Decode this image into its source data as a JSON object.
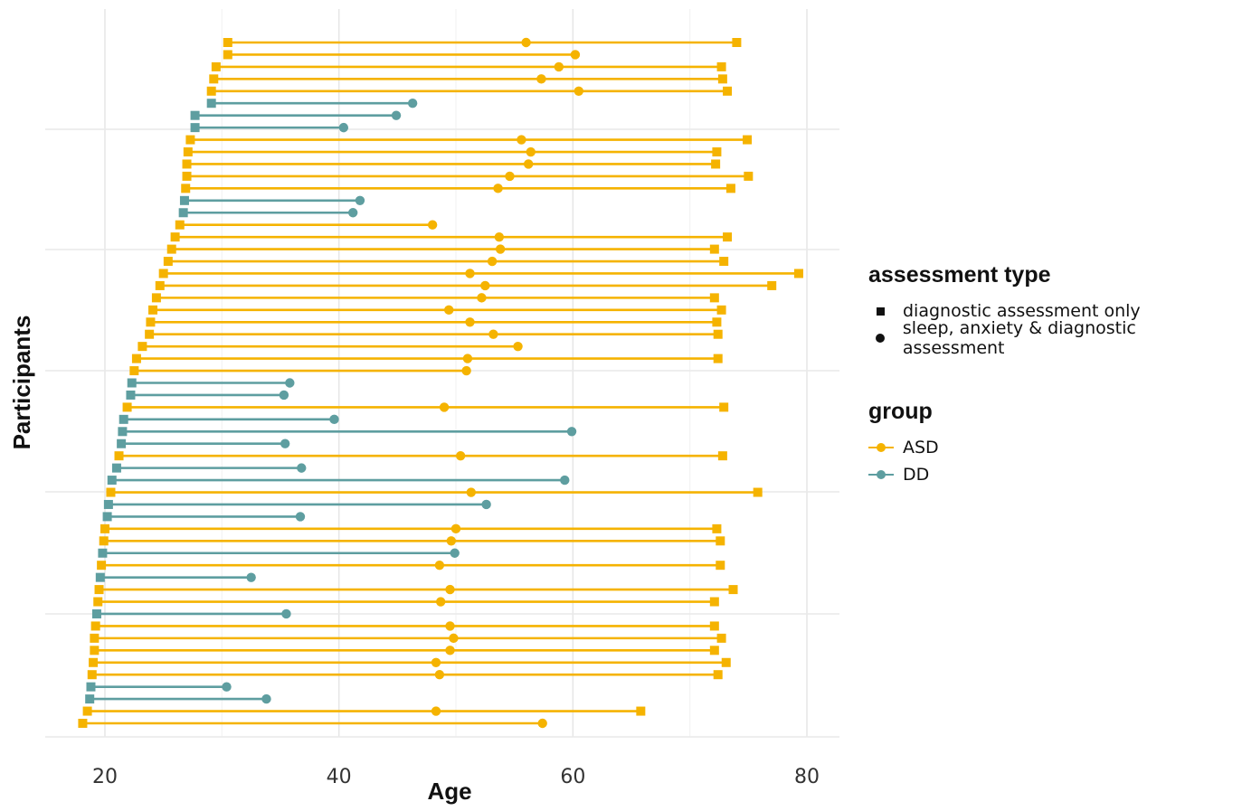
{
  "chart_data": {
    "type": "line",
    "xlabel": "Age",
    "ylabel": "Participants",
    "xlim": [
      15,
      80.8
    ],
    "xticks": [
      20,
      40,
      60,
      80
    ],
    "grid": true,
    "legend_position": "right",
    "colors": {
      "ASD": "#F5B300",
      "DD": "#5E9EA0"
    },
    "legend": {
      "assessment_type": {
        "title": "assessment type",
        "items": [
          {
            "label": "diagnostic assessment only",
            "marker": "square"
          },
          {
            "label": "sleep, anxiety & diagnostic assessment",
            "marker": "circle"
          }
        ]
      },
      "group": {
        "title": "group",
        "items": [
          {
            "label": "ASD",
            "color": "#F5B300"
          },
          {
            "label": "DD",
            "color": "#5E9EA0"
          }
        ]
      }
    },
    "participants": [
      {
        "group": "ASD",
        "start": 30.5,
        "points": [
          56.0
        ],
        "end": 74.0
      },
      {
        "group": "ASD",
        "start": 30.5,
        "points": [],
        "end": 60.2,
        "end_marker": "circle"
      },
      {
        "group": "ASD",
        "start": 29.5,
        "points": [
          58.8
        ],
        "end": 72.7
      },
      {
        "group": "ASD",
        "start": 29.3,
        "points": [
          57.3
        ],
        "end": 72.8
      },
      {
        "group": "ASD",
        "start": 29.1,
        "points": [
          60.5
        ],
        "end": 73.2
      },
      {
        "group": "DD",
        "start": 29.1,
        "points": [],
        "end": 46.3,
        "end_marker": "circle"
      },
      {
        "group": "DD",
        "start": 27.7,
        "points": [],
        "end": 44.9,
        "end_marker": "circle"
      },
      {
        "group": "DD",
        "start": 27.7,
        "points": [],
        "end": 40.4,
        "end_marker": "circle"
      },
      {
        "group": "ASD",
        "start": 27.3,
        "points": [
          55.6
        ],
        "end": 74.9
      },
      {
        "group": "ASD",
        "start": 27.1,
        "points": [
          56.4
        ],
        "end": 72.3
      },
      {
        "group": "ASD",
        "start": 27.0,
        "points": [
          56.2
        ],
        "end": 72.2
      },
      {
        "group": "ASD",
        "start": 27.0,
        "points": [
          54.6
        ],
        "end": 75.0
      },
      {
        "group": "ASD",
        "start": 26.9,
        "points": [
          53.6
        ],
        "end": 73.5
      },
      {
        "group": "DD",
        "start": 26.8,
        "points": [],
        "end": 41.8,
        "end_marker": "circle"
      },
      {
        "group": "DD",
        "start": 26.7,
        "points": [],
        "end": 41.2,
        "end_marker": "circle"
      },
      {
        "group": "ASD",
        "start": 26.4,
        "points": [],
        "end": 48.0,
        "end_marker": "circle"
      },
      {
        "group": "ASD",
        "start": 26.0,
        "points": [
          53.7
        ],
        "end": 73.2
      },
      {
        "group": "ASD",
        "start": 25.7,
        "points": [
          53.8
        ],
        "end": 72.1
      },
      {
        "group": "ASD",
        "start": 25.4,
        "points": [
          53.1
        ],
        "end": 72.9
      },
      {
        "group": "ASD",
        "start": 25.0,
        "points": [
          51.2
        ],
        "end": 79.3
      },
      {
        "group": "ASD",
        "start": 24.7,
        "points": [
          52.5
        ],
        "end": 77.0
      },
      {
        "group": "ASD",
        "start": 24.4,
        "points": [
          52.2
        ],
        "end": 72.1
      },
      {
        "group": "ASD",
        "start": 24.1,
        "points": [
          49.4
        ],
        "end": 72.7
      },
      {
        "group": "ASD",
        "start": 23.9,
        "points": [
          51.2
        ],
        "end": 72.3
      },
      {
        "group": "ASD",
        "start": 23.8,
        "points": [
          53.2
        ],
        "end": 72.4
      },
      {
        "group": "ASD",
        "start": 23.2,
        "points": [],
        "end": 55.3,
        "end_marker": "circle"
      },
      {
        "group": "ASD",
        "start": 22.7,
        "points": [
          51.0
        ],
        "end": 72.4
      },
      {
        "group": "ASD",
        "start": 22.5,
        "points": [],
        "end": 50.9,
        "end_marker": "circle"
      },
      {
        "group": "DD",
        "start": 22.3,
        "points": [],
        "end": 35.8,
        "end_marker": "circle"
      },
      {
        "group": "DD",
        "start": 22.2,
        "points": [],
        "end": 35.3,
        "end_marker": "circle"
      },
      {
        "group": "ASD",
        "start": 21.9,
        "points": [
          49.0
        ],
        "end": 72.9
      },
      {
        "group": "DD",
        "start": 21.6,
        "points": [],
        "end": 39.6,
        "end_marker": "circle"
      },
      {
        "group": "DD",
        "start": 21.5,
        "points": [],
        "end": 59.9,
        "end_marker": "circle"
      },
      {
        "group": "DD",
        "start": 21.4,
        "points": [],
        "end": 35.4,
        "end_marker": "circle"
      },
      {
        "group": "ASD",
        "start": 21.2,
        "points": [
          50.4
        ],
        "end": 72.8
      },
      {
        "group": "DD",
        "start": 21.0,
        "points": [],
        "end": 36.8,
        "end_marker": "circle"
      },
      {
        "group": "DD",
        "start": 20.6,
        "points": [],
        "end": 59.3,
        "end_marker": "circle"
      },
      {
        "group": "ASD",
        "start": 20.5,
        "points": [
          51.3
        ],
        "end": 75.8
      },
      {
        "group": "DD",
        "start": 20.3,
        "points": [],
        "end": 52.6,
        "end_marker": "circle"
      },
      {
        "group": "DD",
        "start": 20.2,
        "points": [],
        "end": 36.7,
        "end_marker": "circle"
      },
      {
        "group": "ASD",
        "start": 20.0,
        "points": [
          50.0
        ],
        "end": 72.3
      },
      {
        "group": "ASD",
        "start": 19.9,
        "points": [
          49.6
        ],
        "end": 72.6
      },
      {
        "group": "DD",
        "start": 19.8,
        "points": [],
        "end": 49.9,
        "end_marker": "circle"
      },
      {
        "group": "ASD",
        "start": 19.7,
        "points": [
          48.6
        ],
        "end": 72.6
      },
      {
        "group": "DD",
        "start": 19.6,
        "points": [],
        "end": 32.5,
        "end_marker": "circle"
      },
      {
        "group": "ASD",
        "start": 19.5,
        "points": [
          49.5
        ],
        "end": 73.7
      },
      {
        "group": "ASD",
        "start": 19.4,
        "points": [
          48.7
        ],
        "end": 72.1
      },
      {
        "group": "DD",
        "start": 19.3,
        "points": [],
        "end": 35.5,
        "end_marker": "circle"
      },
      {
        "group": "ASD",
        "start": 19.2,
        "points": [
          49.5
        ],
        "end": 72.1
      },
      {
        "group": "ASD",
        "start": 19.1,
        "points": [
          49.8
        ],
        "end": 72.7
      },
      {
        "group": "ASD",
        "start": 19.1,
        "points": [
          49.5
        ],
        "end": 72.1
      },
      {
        "group": "ASD",
        "start": 19.0,
        "points": [
          48.3
        ],
        "end": 73.1
      },
      {
        "group": "ASD",
        "start": 18.9,
        "points": [
          48.6
        ],
        "end": 72.4
      },
      {
        "group": "DD",
        "start": 18.8,
        "points": [],
        "end": 30.4,
        "end_marker": "circle"
      },
      {
        "group": "DD",
        "start": 18.7,
        "points": [],
        "end": 33.8,
        "end_marker": "circle"
      },
      {
        "group": "ASD",
        "start": 18.5,
        "points": [
          48.3
        ],
        "end": 65.8
      },
      {
        "group": "ASD",
        "start": 18.1,
        "points": [],
        "end": 57.4,
        "end_marker": "circle"
      }
    ]
  }
}
